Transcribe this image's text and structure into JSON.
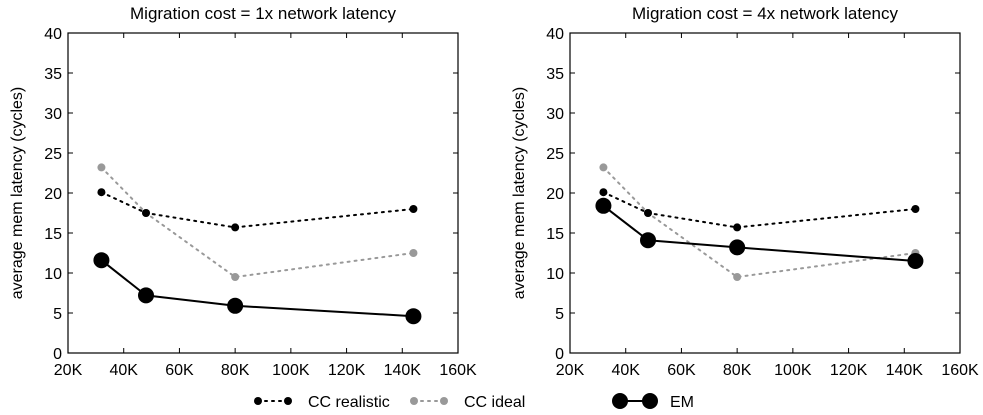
{
  "chart_data": [
    {
      "type": "line",
      "title": "Migration cost = 1x network latency",
      "xlabel": "",
      "ylabel": "average mem latency (cycles)",
      "xlim": [
        20000,
        160000
      ],
      "ylim": [
        0,
        40
      ],
      "x_ticks": [
        "20K",
        "40K",
        "60K",
        "80K",
        "100K",
        "120K",
        "140K",
        "160K"
      ],
      "y_ticks": [
        "0",
        "5",
        "10",
        "15",
        "20",
        "25",
        "30",
        "35",
        "40"
      ],
      "grid": false,
      "series": [
        {
          "name": "CC realistic",
          "x": [
            32000,
            48000,
            80000,
            144000
          ],
          "values": [
            20.1,
            17.5,
            15.7,
            18.0
          ]
        },
        {
          "name": "CC ideal",
          "x": [
            32000,
            48000,
            80000,
            144000
          ],
          "values": [
            23.2,
            17.5,
            9.5,
            12.5
          ]
        },
        {
          "name": "EM",
          "x": [
            32000,
            48000,
            80000,
            144000
          ],
          "values": [
            11.6,
            7.2,
            5.9,
            4.6
          ]
        }
      ]
    },
    {
      "type": "line",
      "title": "Migration cost = 4x network latency",
      "xlabel": "",
      "ylabel": "average mem latency (cycles)",
      "xlim": [
        20000,
        160000
      ],
      "ylim": [
        0,
        40
      ],
      "x_ticks": [
        "20K",
        "40K",
        "60K",
        "80K",
        "100K",
        "120K",
        "140K",
        "160K"
      ],
      "y_ticks": [
        "0",
        "5",
        "10",
        "15",
        "20",
        "25",
        "30",
        "35",
        "40"
      ],
      "grid": false,
      "series": [
        {
          "name": "CC realistic",
          "x": [
            32000,
            48000,
            80000,
            144000
          ],
          "values": [
            20.1,
            17.5,
            15.7,
            18.0
          ]
        },
        {
          "name": "CC ideal",
          "x": [
            32000,
            48000,
            80000,
            144000
          ],
          "values": [
            23.2,
            17.5,
            9.5,
            12.5
          ]
        },
        {
          "name": "EM",
          "x": [
            32000,
            48000,
            80000,
            144000
          ],
          "values": [
            18.4,
            14.1,
            13.2,
            11.5
          ]
        }
      ]
    }
  ],
  "legend": {
    "placement": "bottom-center",
    "items": [
      {
        "label": "CC realistic",
        "color": "#000000",
        "style": "dotted"
      },
      {
        "label": "CC ideal",
        "color": "#999999",
        "style": "dotted"
      },
      {
        "label": "EM",
        "color": "#000000",
        "style": "solid"
      }
    ]
  },
  "colors": {
    "cc_realistic": "#000000",
    "cc_ideal": "#999999",
    "em": "#000000"
  }
}
